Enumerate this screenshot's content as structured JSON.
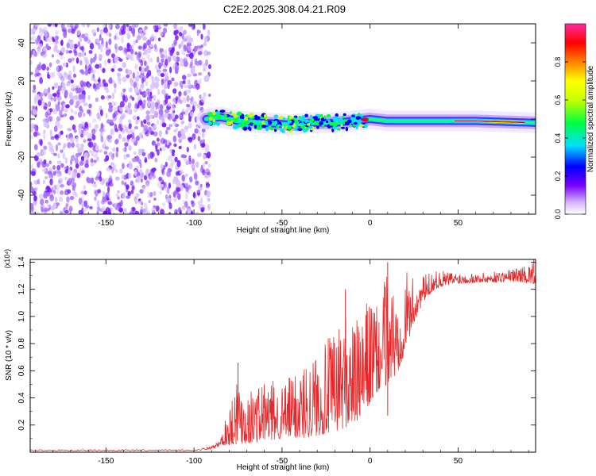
{
  "title": "C2E2.2025.308.04.21.R09",
  "chart_data": [
    {
      "type": "heatmap",
      "name": "spectrogram",
      "xlabel": "Height of straight line (km)",
      "ylabel": "Frequency (Hz)",
      "xlim": [
        -193,
        94
      ],
      "ylim": [
        -50,
        50
      ],
      "xticks": [
        -150,
        -100,
        -50,
        0,
        50
      ],
      "yticks": [
        -40,
        -20,
        0,
        20,
        40
      ],
      "noise_region_x": [
        -193,
        -93
      ],
      "signal_region_x": [
        -93,
        94
      ],
      "signal_center_freq_hz": [
        [
          -93,
          0
        ],
        [
          -85,
          1
        ],
        [
          -75,
          -1
        ],
        [
          -60,
          -2
        ],
        [
          -45,
          -3
        ],
        [
          -35,
          -2
        ],
        [
          -20,
          -2
        ],
        [
          -10,
          -1
        ],
        [
          0,
          0
        ],
        [
          10,
          -1
        ],
        [
          30,
          -1
        ],
        [
          60,
          -1
        ],
        [
          94,
          -2
        ]
      ],
      "colorbar": {
        "label": "Normalized spectral amplitude",
        "range": [
          0,
          1
        ],
        "ticks": [
          0.0,
          0.2,
          0.4,
          0.6,
          0.8
        ],
        "tick_labels": [
          "0.0",
          "0.2",
          "0.4",
          "0.6",
          "0.8"
        ],
        "colors": [
          "#ffffff",
          "#d6b8ff",
          "#7a00ff",
          "#0000ff",
          "#00e0ff",
          "#00ff40",
          "#c8ff00",
          "#ffff00",
          "#ff8000",
          "#ff0000",
          "#ff2aa0"
        ]
      }
    },
    {
      "type": "line",
      "name": "snr",
      "xlabel": "Height of straight line (km)",
      "ylabel": "SNR (10 * v/v)",
      "y_multiplier_label": "(x10⁴)",
      "xlim": [
        -193,
        94
      ],
      "ylim": [
        0,
        1.42
      ],
      "xticks": [
        -150,
        -100,
        -50,
        0,
        50
      ],
      "yticks": [
        0.2,
        0.4,
        0.6,
        0.8,
        1.0,
        1.2,
        1.4
      ],
      "ytick_labels": [
        "0.2",
        "0.4",
        "0.6",
        "0.8",
        "1.0",
        "1.2",
        "1.4"
      ],
      "color": "#e8282a",
      "envelope": {
        "x": [
          -193,
          -100,
          -92,
          -88,
          -85,
          -80,
          -75,
          -70,
          -60,
          -50,
          -40,
          -30,
          -20,
          -14,
          -10,
          -5,
          0,
          5,
          10,
          15,
          20,
          25,
          30,
          35,
          40,
          50,
          60,
          70,
          80,
          94
        ],
        "low": [
          0.01,
          0.01,
          0.02,
          0.03,
          0.05,
          0.05,
          0.06,
          0.06,
          0.08,
          0.1,
          0.1,
          0.12,
          0.15,
          0.18,
          0.2,
          0.25,
          0.35,
          0.45,
          0.5,
          0.55,
          0.75,
          0.95,
          1.1,
          1.18,
          1.22,
          1.24,
          1.25,
          1.25,
          1.26,
          1.24
        ],
        "high": [
          0.02,
          0.02,
          0.04,
          0.06,
          0.1,
          0.35,
          0.65,
          0.45,
          0.55,
          0.5,
          0.65,
          0.75,
          0.9,
          1.05,
          1.0,
          0.95,
          1.2,
          1.05,
          1.4,
          1.2,
          1.35,
          1.28,
          1.3,
          1.33,
          1.34,
          1.33,
          1.32,
          1.33,
          1.35,
          1.4
        ]
      },
      "spikes": [
        {
          "x": -75,
          "y": 0.66
        },
        {
          "x": -14,
          "y": 1.2
        },
        {
          "x": 10,
          "y": 1.4
        },
        {
          "x": 10,
          "y": 0.27
        },
        {
          "x": 93,
          "y": 1.42
        }
      ]
    }
  ]
}
